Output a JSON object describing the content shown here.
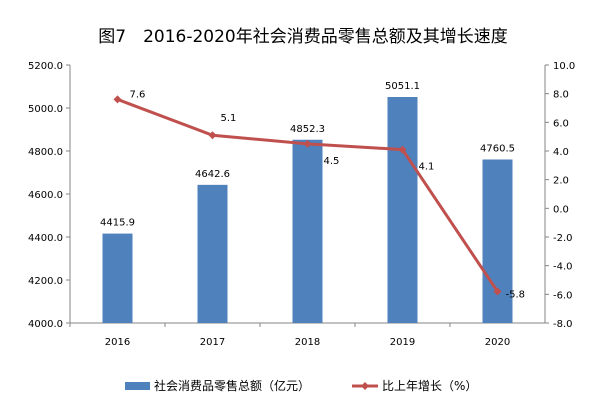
{
  "chart_data": {
    "type": "bar+line",
    "title": "图7　2016-2020年社会消费品零售总额及其增长速度",
    "categories": [
      "2016",
      "2017",
      "2018",
      "2019",
      "2020"
    ],
    "series": [
      {
        "name": "社会消费品零售总额（亿元）",
        "type": "bar",
        "axis": "left",
        "color": "#4f81bd",
        "values": [
          4415.9,
          4642.6,
          4852.3,
          5051.1,
          4760.5
        ],
        "labels": [
          "4415.9",
          "4642.6",
          "4852.3",
          "5051.1",
          "4760.5"
        ]
      },
      {
        "name": "比上年增长（%）",
        "type": "line",
        "axis": "right",
        "color": "#c0504d",
        "values": [
          7.6,
          5.1,
          4.5,
          4.1,
          -5.8
        ],
        "labels": [
          "7.6",
          "5.1",
          "4.5",
          "4.1",
          "-5.8"
        ]
      }
    ],
    "left_axis": {
      "ylim": [
        4000,
        5200
      ],
      "ticks": [
        "4000.0",
        "4200.0",
        "4400.0",
        "4600.0",
        "4800.0",
        "5000.0",
        "5200.0"
      ]
    },
    "right_axis": {
      "ylim": [
        -8,
        10
      ],
      "ticks": [
        "-8.0",
        "-6.0",
        "-4.0",
        "-2.0",
        "0.0",
        "2.0",
        "4.0",
        "6.0",
        "8.0",
        "10.0"
      ]
    },
    "grid": false,
    "legend_position": "bottom"
  }
}
